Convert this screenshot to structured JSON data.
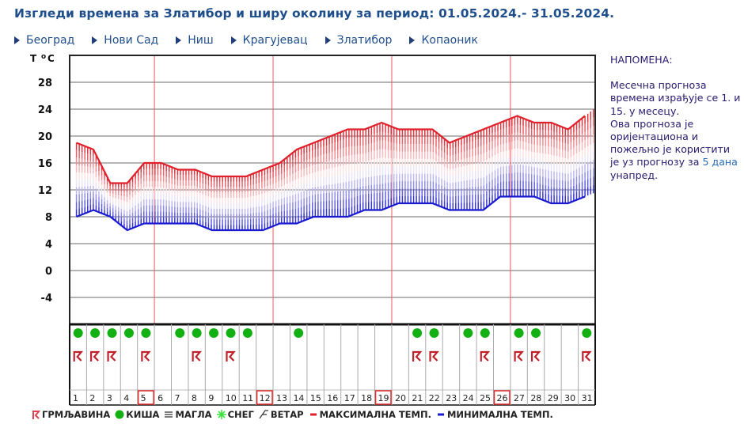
{
  "header": {
    "title": "Изгледи времена за Златибор и ширу околину за период: 01.05.2024.- 31.05.2024."
  },
  "nav": {
    "items": [
      {
        "label": "Београд"
      },
      {
        "label": "Нови Сад"
      },
      {
        "label": "Ниш"
      },
      {
        "label": "Крагујевац"
      },
      {
        "label": "Златибор"
      },
      {
        "label": "Копаоник"
      }
    ]
  },
  "note": {
    "heading": "НАПОМЕНА:",
    "text1": "Месечна прогноза времена израђује се 1. и 15. у месецу.",
    "text2": "Ова прогноза је оријентациона и пожељно је користити је уз прогнозу за ",
    "link": "5 дана",
    "text3": " унапред."
  },
  "legend": {
    "thunder": "ГРМЉАВИНА",
    "rain": "КИША",
    "fog": "МАГЛА",
    "snow": "СНЕГ",
    "wind": "ВЕТАР",
    "max": "МАКСИМАЛНА ТЕМП.",
    "min": "МИНИМАЛНА ТЕМП."
  },
  "colors": {
    "title": "#1f4e8c",
    "max_line": "#e0202a",
    "min_line": "#1a1ad0",
    "rain": "#12b012",
    "thunder": "#c0202a",
    "highlight": "#e03030"
  },
  "chart_data": {
    "type": "line",
    "title": "Изгледи времена за Златибор и ширу околину за период: 01.05.2024.- 31.05.2024.",
    "xlabel": "",
    "ylabel": "T °C",
    "ylim": [
      -8,
      32
    ],
    "yticks": [
      28,
      24,
      20,
      16,
      12,
      8,
      4,
      0,
      -4
    ],
    "grid": true,
    "legend_position": "bottom",
    "x": [
      1,
      2,
      3,
      4,
      5,
      6,
      7,
      8,
      9,
      10,
      11,
      12,
      13,
      14,
      15,
      16,
      17,
      18,
      19,
      20,
      21,
      22,
      23,
      24,
      25,
      26,
      27,
      28,
      29,
      30,
      31
    ],
    "highlighted_days": [
      5,
      12,
      19,
      26
    ],
    "series": [
      {
        "name": "МАКСИМАЛНА ТЕМП.",
        "values": [
          19,
          18,
          13,
          13,
          16,
          16,
          15,
          15,
          14,
          14,
          14,
          15,
          16,
          18,
          19,
          20,
          21,
          21,
          22,
          21,
          21,
          21,
          19,
          20,
          21,
          22,
          23,
          22,
          22,
          21,
          23
        ]
      },
      {
        "name": "МИНИМАЛНА ТЕМП.",
        "values": [
          8,
          9,
          8,
          6,
          7,
          7,
          7,
          7,
          6,
          6,
          6,
          6,
          7,
          7,
          8,
          8,
          8,
          9,
          9,
          10,
          10,
          10,
          9,
          9,
          9,
          11,
          11,
          11,
          10,
          10,
          11
        ]
      }
    ],
    "rain_days": [
      1,
      2,
      3,
      4,
      5,
      7,
      8,
      9,
      10,
      11,
      14,
      21,
      22,
      24,
      25,
      27,
      28,
      31
    ],
    "thunder_days": [
      1,
      2,
      3,
      5,
      8,
      10,
      21,
      22,
      25,
      27,
      28,
      31
    ],
    "fog_days": [],
    "snow_days": [],
    "wind_days": []
  }
}
